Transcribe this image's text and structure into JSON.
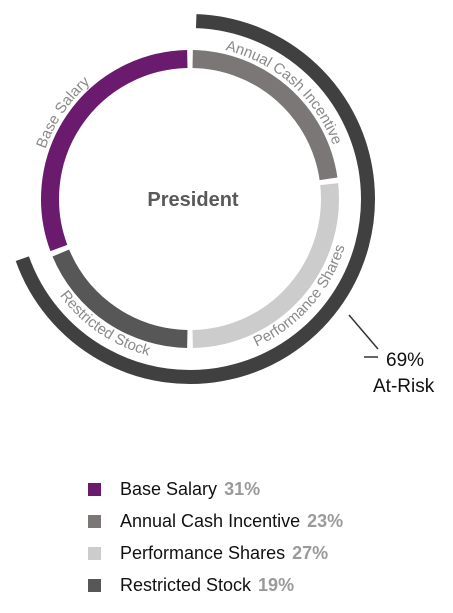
{
  "chart_data": {
    "type": "pie",
    "title": "President",
    "categories": [
      "Base Salary",
      "Annual Cash Incentive",
      "Performance Shares",
      "Restricted Stock"
    ],
    "values": [
      31,
      23,
      27,
      19
    ],
    "value_labels": [
      "31%",
      "23%",
      "27%",
      "19%"
    ],
    "colors": [
      "#6a1b6e",
      "#7b7777",
      "#cccccc",
      "#575757"
    ],
    "at_risk": {
      "value": 69,
      "value_label": "69%",
      "label": "At-Risk",
      "color": "#404040"
    },
    "legend_placement": "bottom"
  }
}
